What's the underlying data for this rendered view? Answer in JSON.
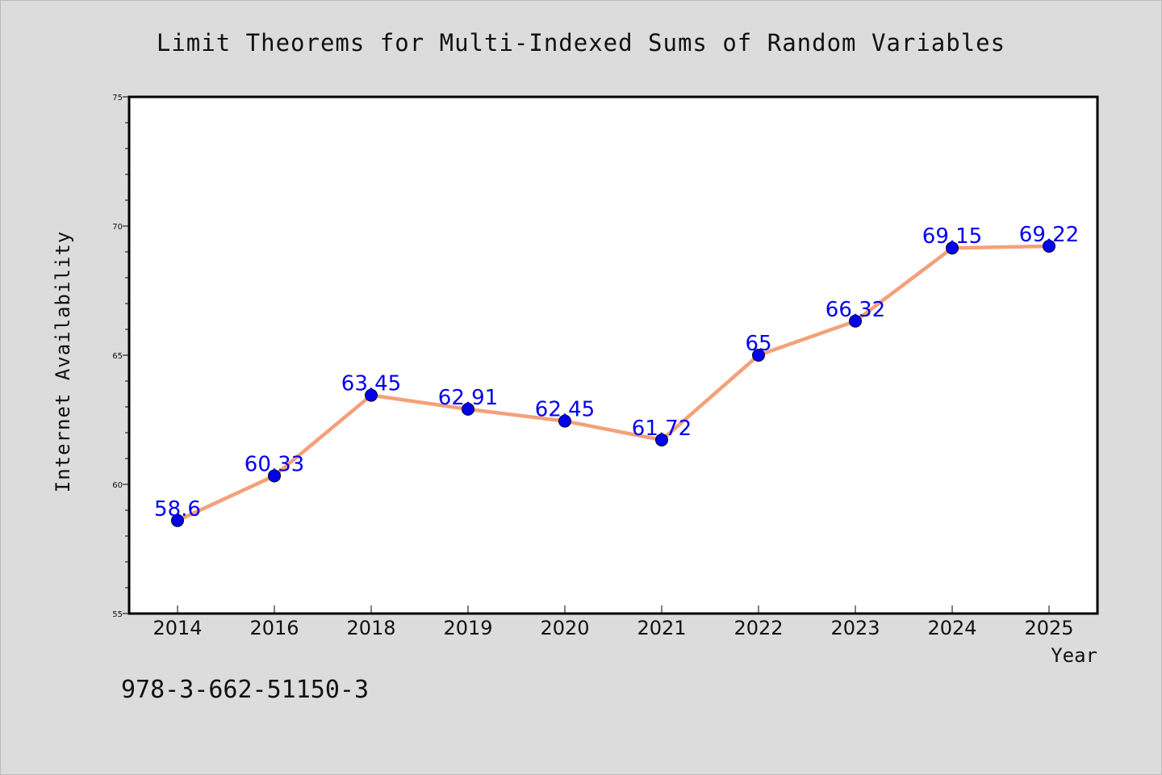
{
  "chart_data": {
    "type": "line",
    "title": "Limit Theorems for Multi-Indexed Sums of Random Variables",
    "xlabel": "Year",
    "ylabel": "Internet Availability",
    "categories": [
      "2014",
      "2016",
      "2018",
      "2019",
      "2020",
      "2021",
      "2022",
      "2023",
      "2024",
      "2025"
    ],
    "values": [
      58.6,
      60.33,
      63.45,
      62.91,
      62.45,
      61.72,
      65,
      66.32,
      69.15,
      69.22
    ],
    "data_labels": [
      "58.6",
      "60.33",
      "63.45",
      "62.91",
      "62.45",
      "61.72",
      "65",
      "66.32",
      "69.15",
      "69.22"
    ],
    "ylim": [
      55,
      75
    ],
    "yticks": [
      "55",
      "60",
      "65",
      "70",
      "75"
    ],
    "grid": false,
    "legend": "none",
    "colors": {
      "line": "#f4a07a",
      "marker": "#0000ee",
      "label": "#0000ee",
      "background": "#dcdcdc",
      "plot_background": "#ffffff"
    }
  },
  "footer_text": "978-3-662-51150-3"
}
